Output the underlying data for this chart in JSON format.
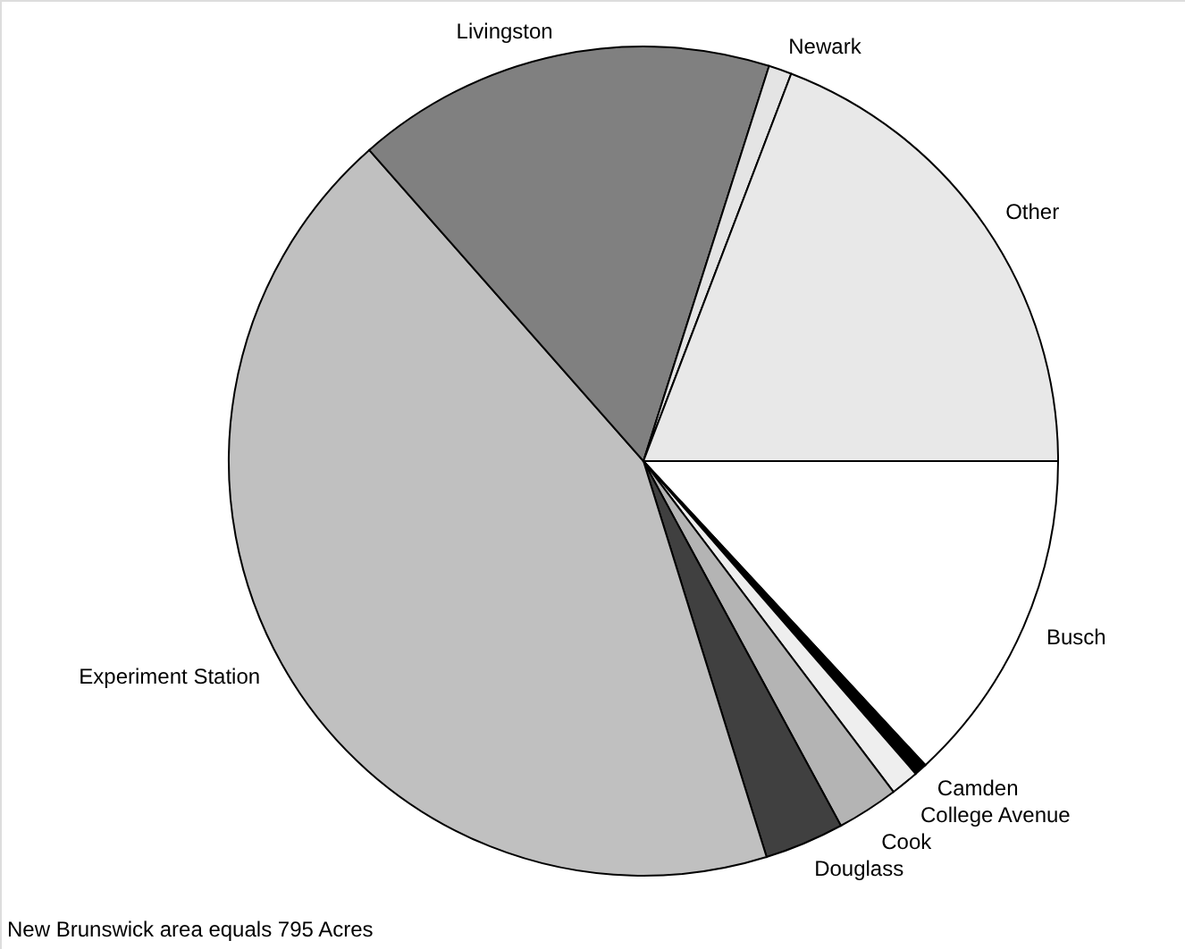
{
  "chart_data": {
    "type": "pie",
    "categories": [
      "Busch",
      "Camden",
      "College Avenue",
      "Cook",
      "Douglass",
      "Experiment Station",
      "Livingston",
      "Newark",
      "Other"
    ],
    "values": [
      13.1,
      0.5,
      1.1,
      2.4,
      3.1,
      43.3,
      16.4,
      0.9,
      19.2
    ],
    "colors": [
      "#ffffff",
      "#000000",
      "#eeeeee",
      "#b4b4b4",
      "#404040",
      "#c0c0c0",
      "#808080",
      "#e4e4e4",
      "#e8e8e8"
    ],
    "annotations": [
      "New Brunswick area equals 795 Acres"
    ]
  }
}
